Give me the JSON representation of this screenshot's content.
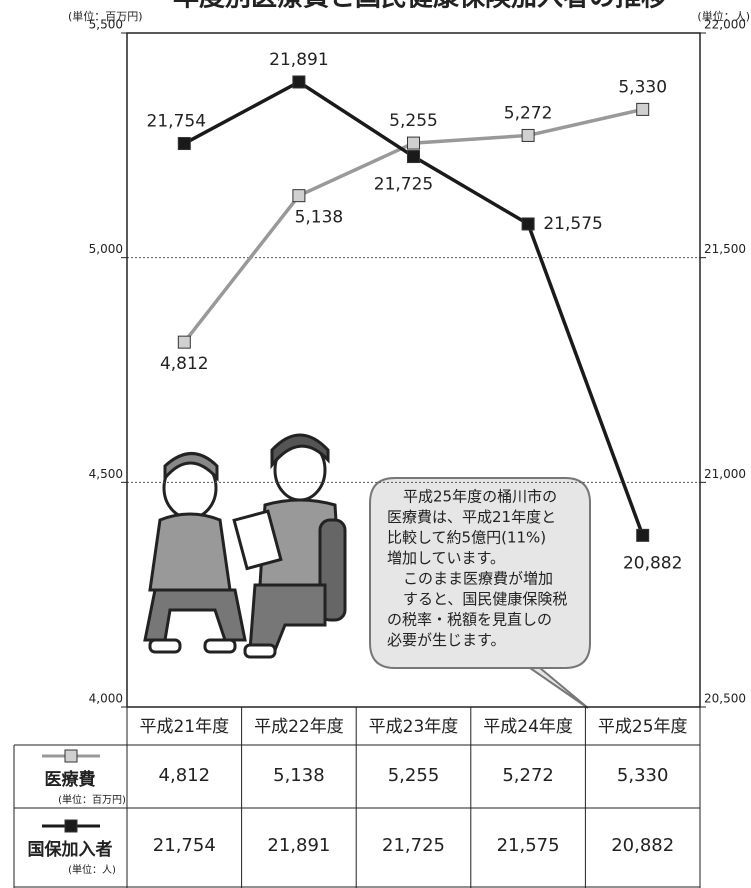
{
  "chart_data": {
    "type": "line",
    "title": "年度別医療費と国民健康保険加入者の推移",
    "ylabel": "(単位：百万円)",
    "y2label": "(単位：人)",
    "categories": [
      "平成21年度",
      "平成22年度",
      "平成23年度",
      "平成24年度",
      "平成25年度"
    ],
    "ylim": [
      4000,
      5500
    ],
    "yticks": [
      {
        "value": 4000,
        "label": "4,000"
      },
      {
        "value": 4500,
        "label": "4,500"
      },
      {
        "value": 5000,
        "label": "5,000"
      },
      {
        "value": 5500,
        "label": "5,500"
      }
    ],
    "y2lim": [
      20500,
      22000
    ],
    "y2ticks": [
      {
        "value": 20500,
        "label": "20,500"
      },
      {
        "value": 21000,
        "label": "21,000"
      },
      {
        "value": 21500,
        "label": "21,500"
      },
      {
        "value": 22000,
        "label": "22,000"
      }
    ],
    "grid": true,
    "series": [
      {
        "name": "医療費",
        "color": "#999999",
        "marker_color": "#d0d0d0",
        "values": [
          4812,
          5138,
          5255,
          5272,
          5330
        ],
        "value_labels": [
          "4,812",
          "5,138",
          "5,255",
          "5,272",
          "5,330"
        ]
      },
      {
        "name": "国保加入者",
        "color": "#1a1a1a",
        "marker_color": "#1a1a1a",
        "axis": "y2",
        "values": [
          21754,
          21891,
          21725,
          21575,
          20882
        ],
        "value_labels": [
          "21,754",
          "21,891",
          "21,725",
          "21,575",
          "20,882"
        ]
      }
    ],
    "annotation": [
      "平成25年度の桶川市の",
      "医療費は、平成21年度と",
      "比較して約5億円(11%)",
      "増加しています。",
      "このまま医療費が増加",
      "すると、国民健康保険税",
      "の税率・税額を見直しの",
      "必要が生じます。"
    ]
  }
}
